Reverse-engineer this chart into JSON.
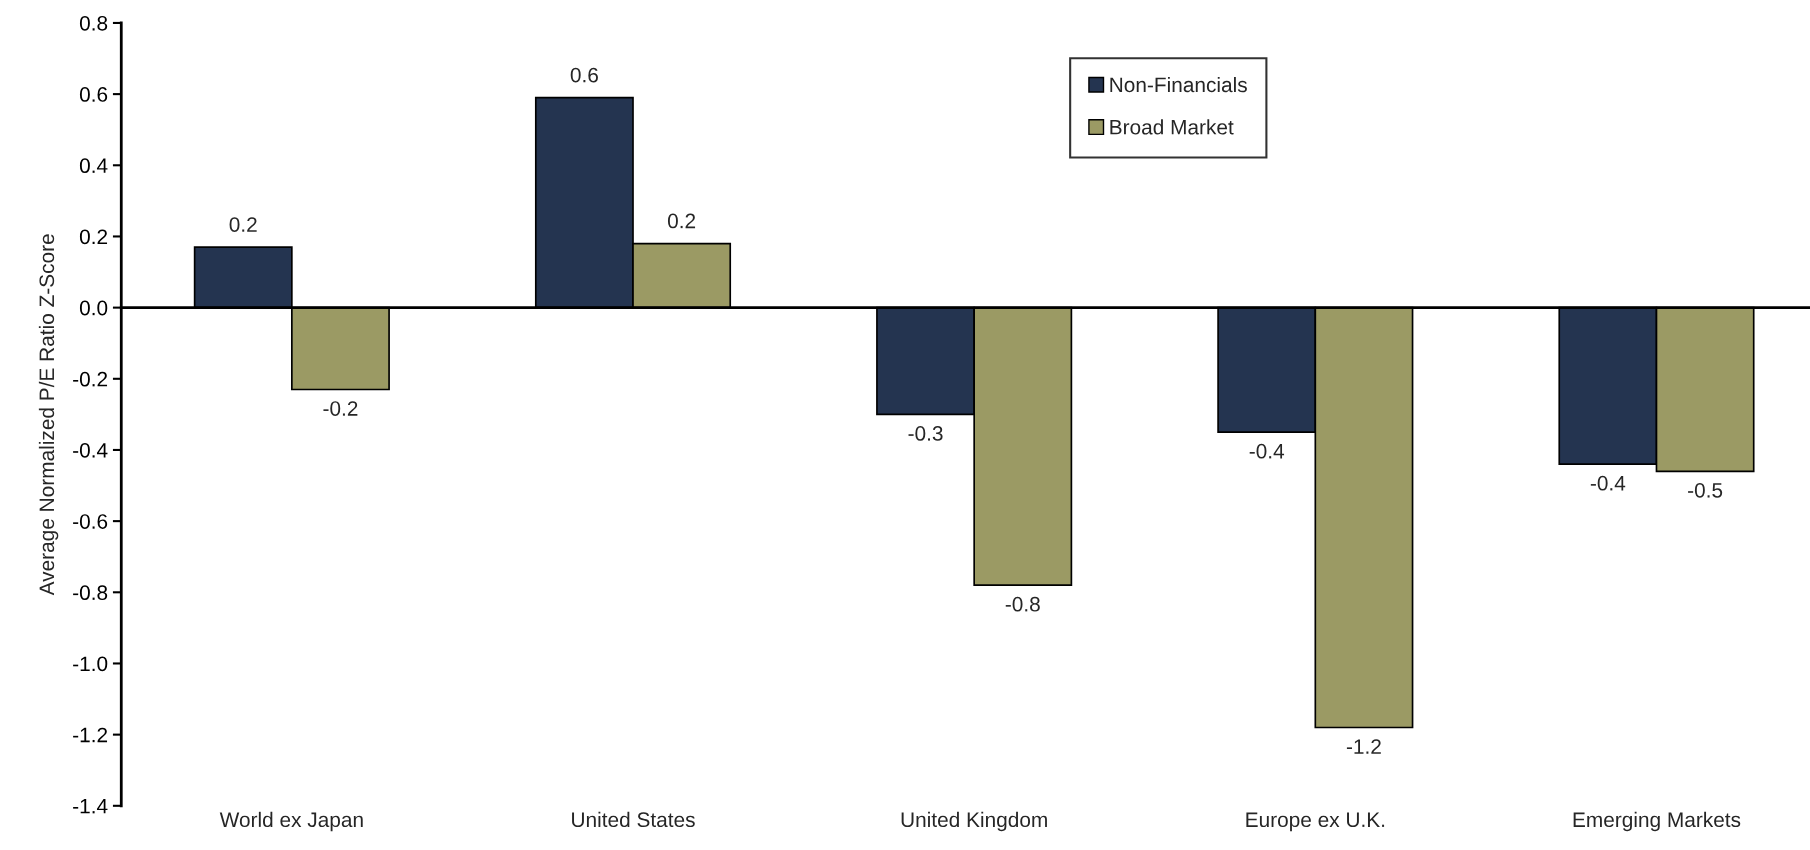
{
  "chart_data": {
    "type": "bar",
    "ylabel": "Average Normalized P/E Ratio Z-Score",
    "categories": [
      "World ex Japan",
      "United States",
      "United Kingdom",
      "Europe ex U.K.",
      "Emerging Markets"
    ],
    "series": [
      {
        "name": "Non-Financials",
        "color": "#243450",
        "values": [
          0.17,
          0.59,
          -0.3,
          -0.35,
          -0.44
        ],
        "value_labels": [
          "0.2",
          "0.6",
          "-0.3",
          "-0.4",
          "-0.4"
        ]
      },
      {
        "name": "Broad Market",
        "color": "#9b9a64",
        "values": [
          -0.23,
          0.18,
          -0.78,
          -1.18,
          -0.46
        ],
        "value_labels": [
          "-0.2",
          "0.2",
          "-0.8",
          "-1.2",
          "-0.5"
        ]
      }
    ],
    "ylim": [
      -1.4,
      0.8
    ],
    "yticks": [
      0.8,
      0.6,
      0.4,
      0.2,
      {
        "value": 0,
        "label": "0.0"
      },
      -0.2,
      -0.4,
      -0.6,
      -0.8,
      {
        "value": -1,
        "label": "-1.0"
      },
      -1.2,
      -1.4
    ],
    "legend": "top"
  }
}
